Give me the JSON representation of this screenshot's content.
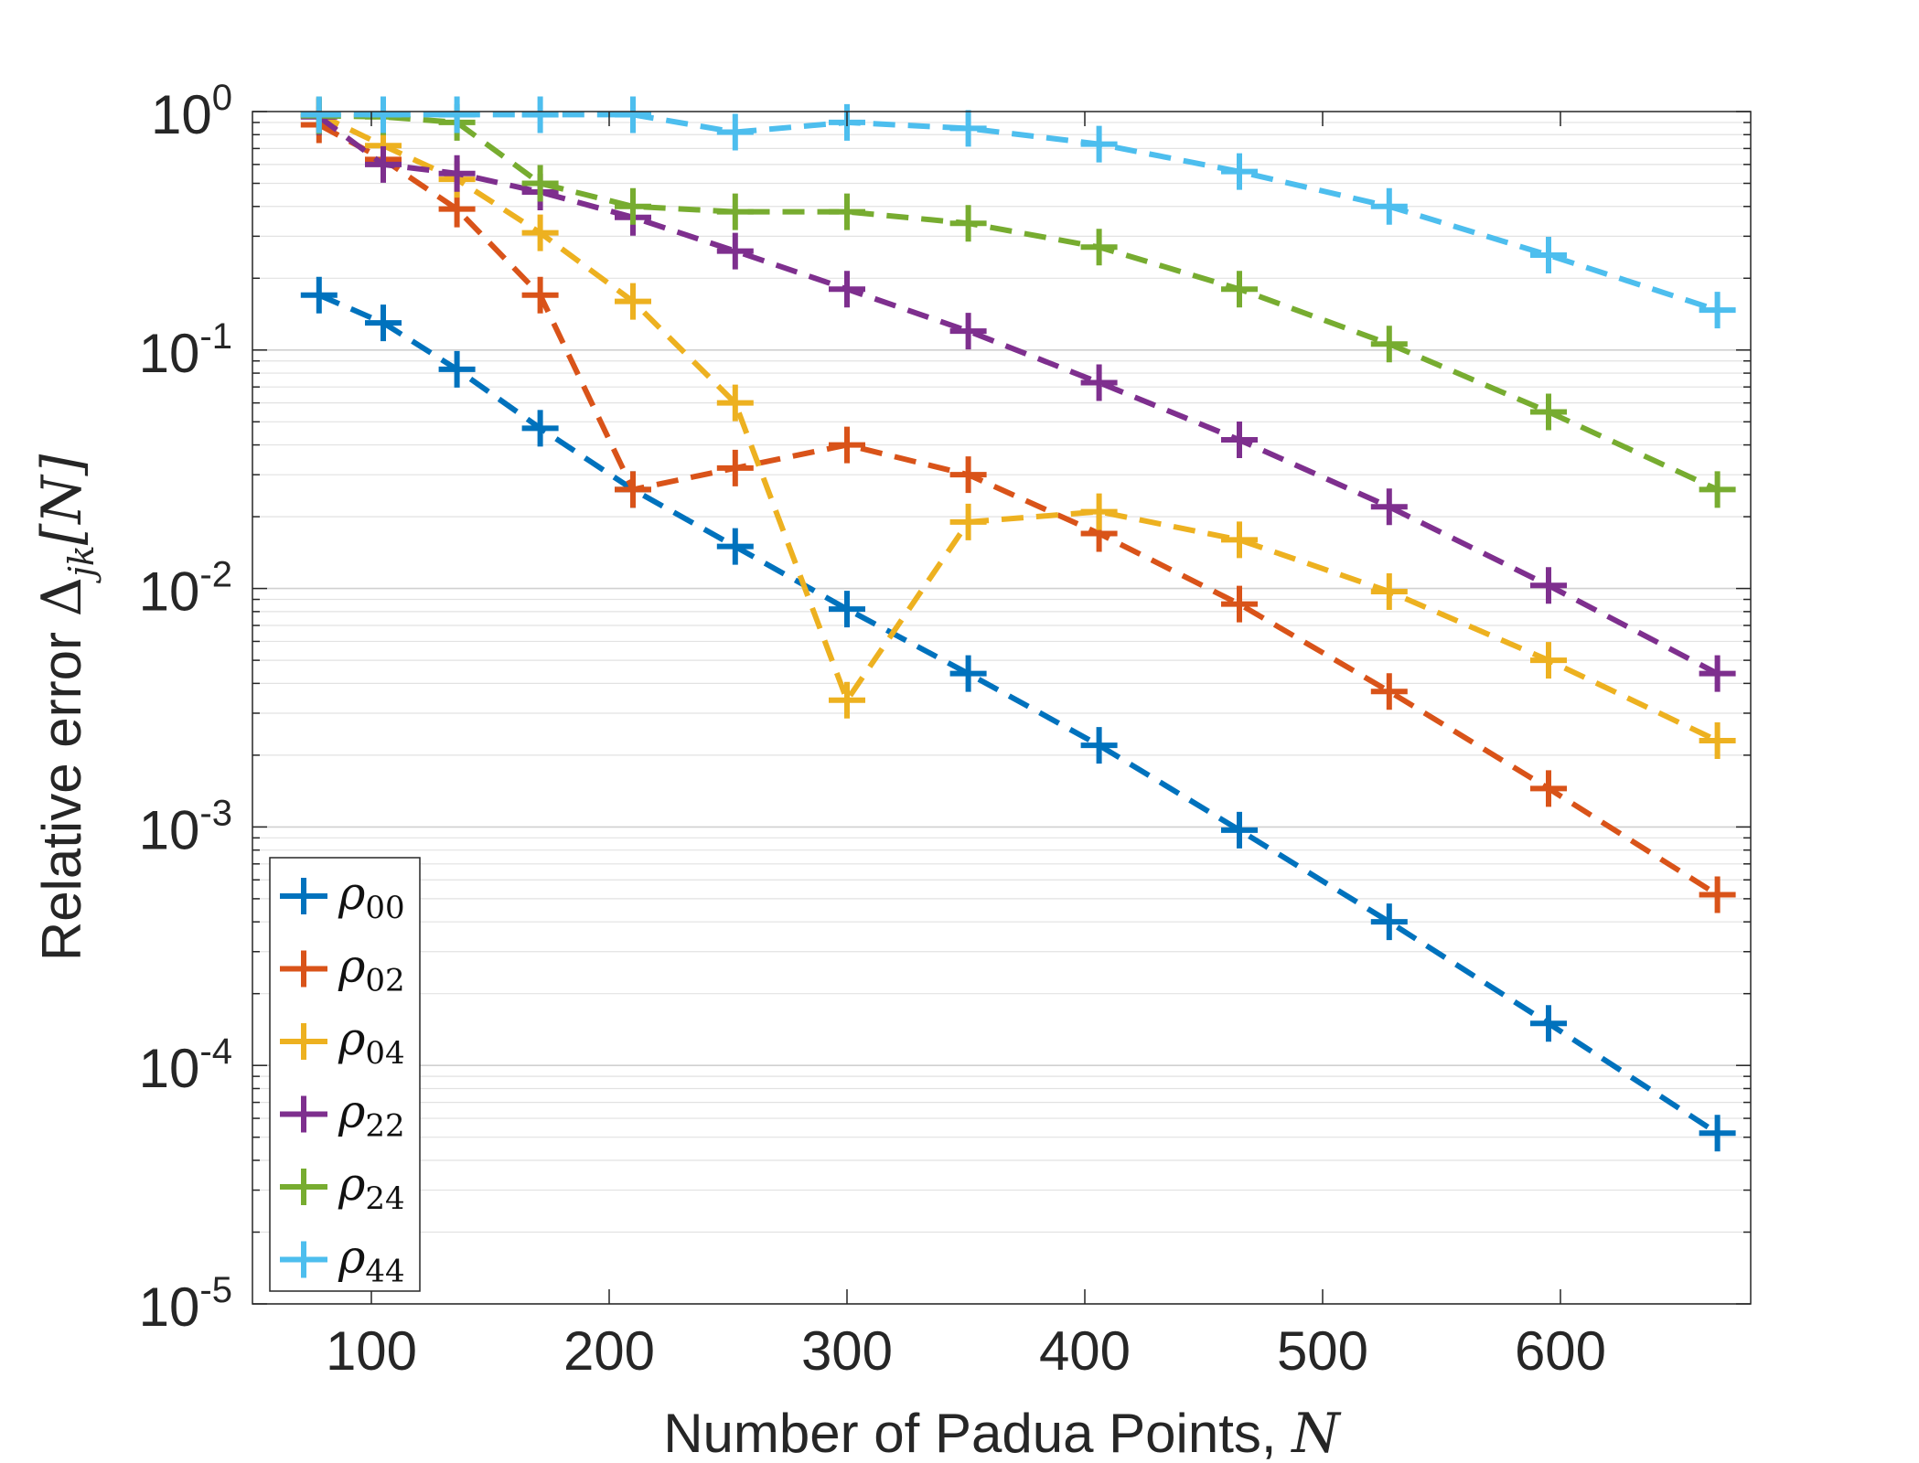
{
  "chart_data": {
    "type": "line",
    "title": "",
    "xlabel": {
      "text": "Number of Padua Points, ",
      "symbol": "N"
    },
    "ylabel": {
      "text": "Relative error ",
      "symbol": "Δ",
      "subscript": "jk",
      "arg": "[N]"
    },
    "xlim": [
      50,
      680
    ],
    "ylim": [
      1e-05,
      1
    ],
    "yscale": "log",
    "grid": true,
    "legend_position": "bottom-left",
    "x_ticks": [
      100,
      200,
      300,
      400,
      500,
      600
    ],
    "x_tick_labels": [
      "100",
      "200",
      "300",
      "400",
      "500",
      "600"
    ],
    "y_ticks": [
      1e-05,
      0.0001,
      0.001,
      0.01,
      0.1,
      1
    ],
    "y_tick_labels": [
      {
        "base": "10",
        "exp": "-5"
      },
      {
        "base": "10",
        "exp": "-4"
      },
      {
        "base": "10",
        "exp": "-3"
      },
      {
        "base": "10",
        "exp": "-2"
      },
      {
        "base": "10",
        "exp": "-1"
      },
      {
        "base": "10",
        "exp": "0"
      }
    ],
    "x": [
      78,
      105,
      136,
      171,
      210,
      253,
      300,
      351,
      406,
      465,
      528,
      595,
      666
    ],
    "series": [
      {
        "name": "ρ",
        "sub": "00",
        "color": "#0072BD",
        "values": [
          0.17,
          0.13,
          0.083,
          0.047,
          0.026,
          0.015,
          0.0082,
          0.0044,
          0.0022,
          0.00097,
          0.0004,
          0.00015,
          5.2e-05
        ]
      },
      {
        "name": "ρ",
        "sub": "02",
        "color": "#D95319",
        "values": [
          0.88,
          0.63,
          0.39,
          0.17,
          0.026,
          0.032,
          0.04,
          0.03,
          0.017,
          0.0086,
          0.0037,
          0.00145,
          0.00052
        ]
      },
      {
        "name": "ρ",
        "sub": "04",
        "color": "#EDB120",
        "values": [
          0.97,
          0.72,
          0.52,
          0.31,
          0.16,
          0.06,
          0.0034,
          0.019,
          0.021,
          0.016,
          0.0097,
          0.005,
          0.0023
        ]
      },
      {
        "name": "ρ",
        "sub": "22",
        "color": "#7E2F8E",
        "values": [
          0.95,
          0.6,
          0.55,
          0.46,
          0.36,
          0.26,
          0.18,
          0.12,
          0.073,
          0.042,
          0.022,
          0.0103,
          0.0044
        ]
      },
      {
        "name": "ρ",
        "sub": "24",
        "color": "#77AC30",
        "values": [
          0.96,
          0.95,
          0.9,
          0.5,
          0.4,
          0.38,
          0.38,
          0.34,
          0.27,
          0.18,
          0.106,
          0.055,
          0.026
        ]
      },
      {
        "name": "ρ",
        "sub": "44",
        "color": "#4DBEEE",
        "values": [
          0.97,
          0.97,
          0.97,
          0.97,
          0.97,
          0.82,
          0.9,
          0.85,
          0.73,
          0.56,
          0.4,
          0.25,
          0.147
        ]
      }
    ]
  }
}
